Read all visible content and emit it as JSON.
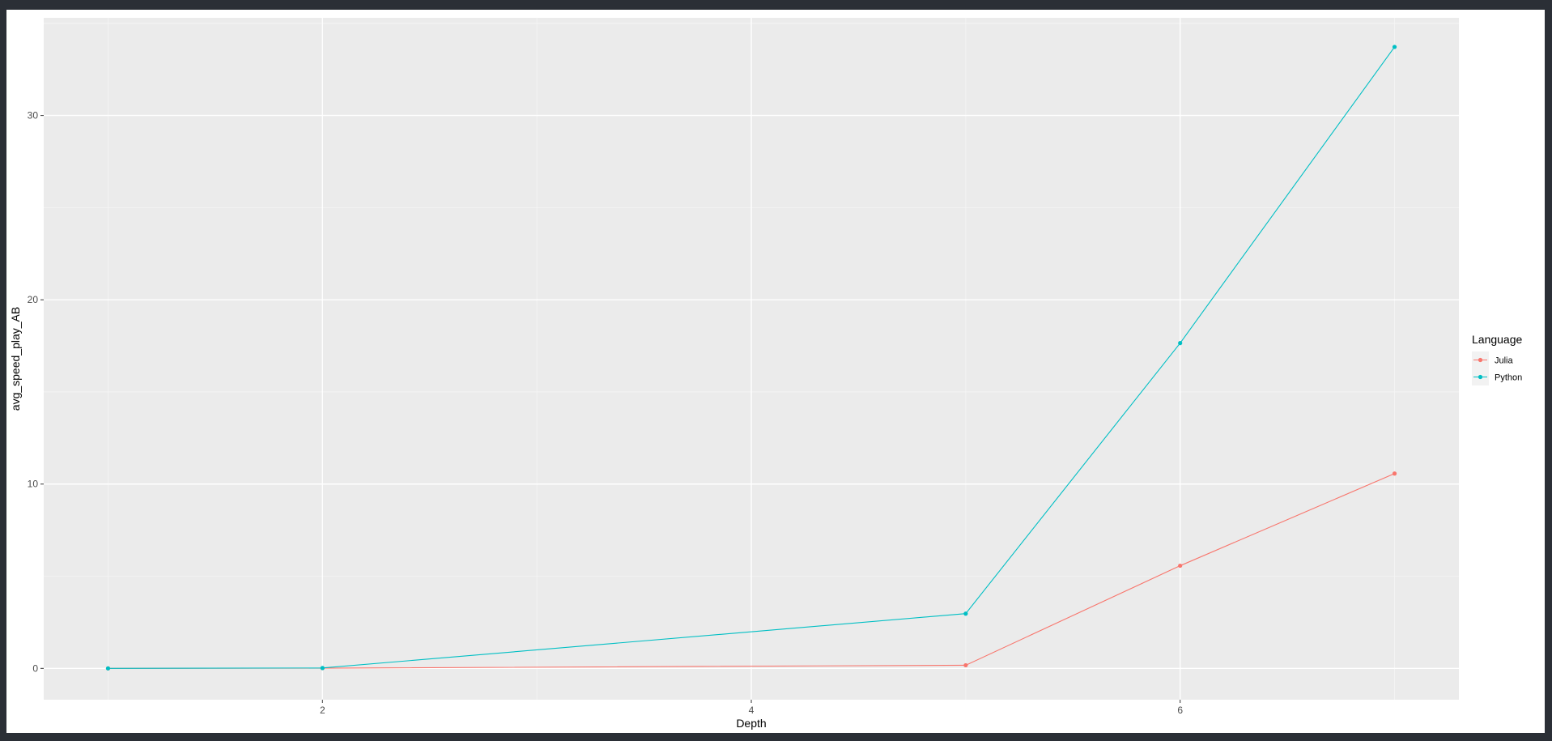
{
  "chart_data": {
    "type": "line",
    "title": "",
    "xlabel": "Depth",
    "ylabel": "avg_speed_play_AB",
    "x": [
      1,
      2,
      5,
      6,
      7
    ],
    "xlim": [
      0.7,
      7.3
    ],
    "ylim": [
      -1.7,
      35.3
    ],
    "xticks": [
      2,
      4,
      6
    ],
    "yticks": [
      0,
      10,
      20,
      30
    ],
    "grid": true,
    "series": [
      {
        "name": "Julia",
        "color": "#f8766d",
        "values": [
          0,
          0.01,
          0.17,
          5.57,
          10.57
        ]
      },
      {
        "name": "Python",
        "color": "#00bfc4",
        "values": [
          0,
          0.02,
          2.97,
          17.65,
          33.72
        ]
      }
    ],
    "legend": {
      "title": "Language",
      "placement": "right"
    },
    "colors": {
      "panel": "#ebebeb",
      "grid_major": "#ffffff",
      "grid_minor": "#f5f5f5",
      "background": "#2b2f36"
    }
  }
}
